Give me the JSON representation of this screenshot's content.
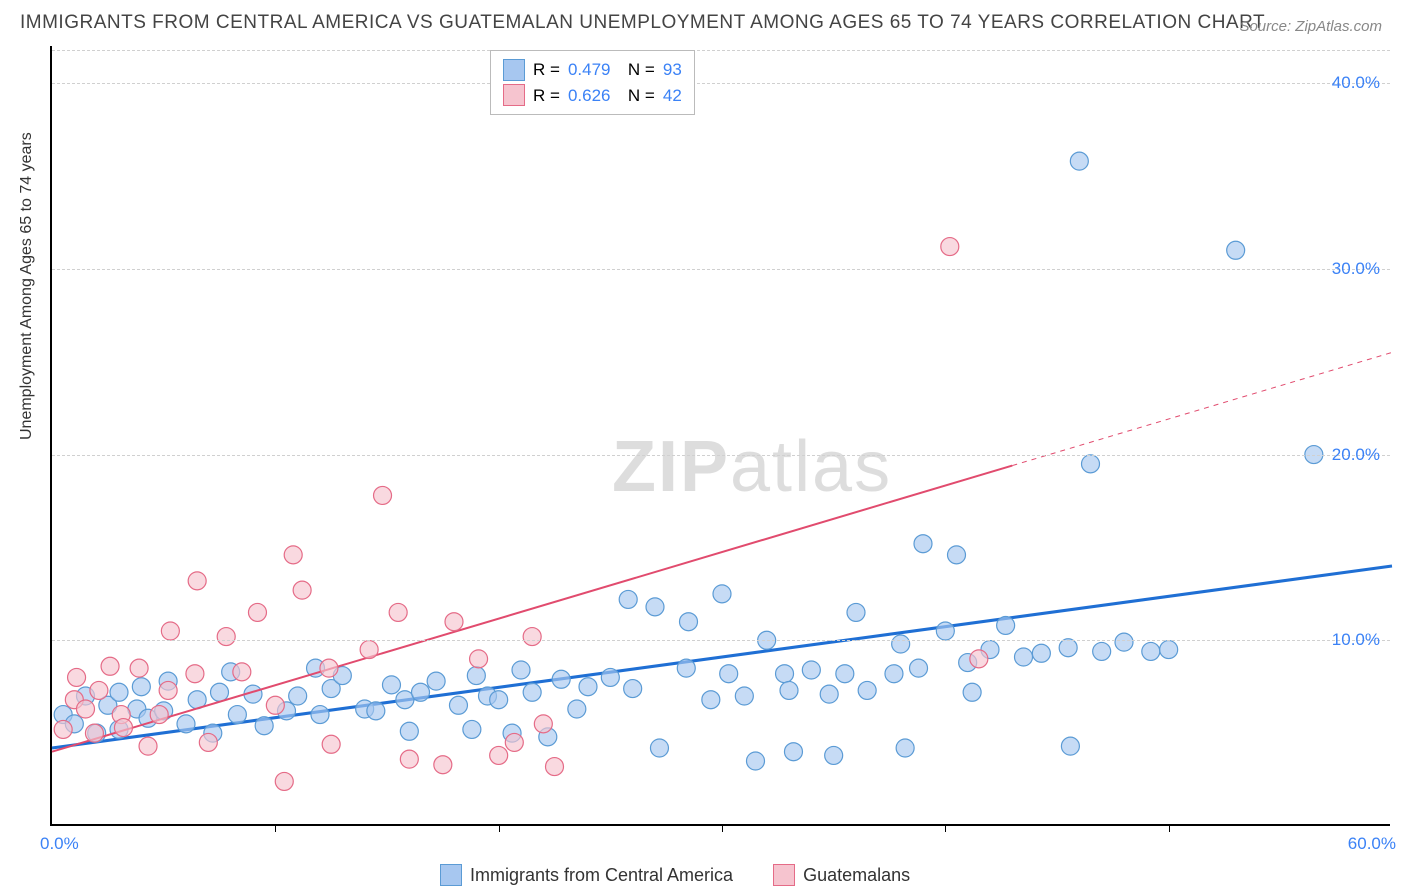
{
  "title": "IMMIGRANTS FROM CENTRAL AMERICA VS GUATEMALAN UNEMPLOYMENT AMONG AGES 65 TO 74 YEARS CORRELATION CHART",
  "source": "Source: ZipAtlas.com",
  "watermark_a": "ZIP",
  "watermark_b": "atlas",
  "y_axis_label": "Unemployment Among Ages 65 to 74 years",
  "chart": {
    "type": "scatter",
    "xlim": [
      0,
      60
    ],
    "ylim": [
      0,
      42
    ],
    "x_ticks": [
      0,
      10,
      20,
      30,
      40,
      50,
      60
    ],
    "y_ticks": [
      10,
      20,
      30,
      40
    ],
    "y_tick_labels": [
      "10.0%",
      "20.0%",
      "30.0%",
      "40.0%"
    ],
    "x_start_label": "0.0%",
    "x_end_label": "60.0%",
    "y_label_color": "#3b82f6",
    "x_label_color": "#3b82f6",
    "grid_color": "#d0d0d0",
    "background_color": "#ffffff",
    "marker_radius": 9,
    "marker_stroke_width": 1.2,
    "series": [
      {
        "name": "Immigrants from Central America",
        "color_fill": "#a7c7f0",
        "color_stroke": "#5b9bd5",
        "line_color": "#1f6fd4",
        "line_width": 3,
        "r": "0.479",
        "n": "93",
        "trend": {
          "x1": 0,
          "y1": 4.2,
          "x2": 60,
          "y2": 14.0
        },
        "points": [
          [
            0.5,
            6
          ],
          [
            1,
            5.5
          ],
          [
            1.5,
            7
          ],
          [
            2,
            5
          ],
          [
            2.5,
            6.5
          ],
          [
            3,
            7.2
          ],
          [
            3,
            5.2
          ],
          [
            3.8,
            6.3
          ],
          [
            4,
            7.5
          ],
          [
            4.3,
            5.8
          ],
          [
            5,
            6.2
          ],
          [
            5.2,
            7.8
          ],
          [
            6,
            5.5
          ],
          [
            6.5,
            6.8
          ],
          [
            7.2,
            5
          ],
          [
            7.5,
            7.2
          ],
          [
            8,
            8.3
          ],
          [
            8.3,
            6
          ],
          [
            9,
            7.1
          ],
          [
            9.5,
            5.4
          ],
          [
            10.5,
            6.2
          ],
          [
            11,
            7
          ],
          [
            11.8,
            8.5
          ],
          [
            12,
            6
          ],
          [
            12.5,
            7.4
          ],
          [
            13,
            8.1
          ],
          [
            14,
            6.3
          ],
          [
            14.5,
            6.2
          ],
          [
            15.2,
            7.6
          ],
          [
            15.8,
            6.8
          ],
          [
            16,
            5.1
          ],
          [
            16.5,
            7.2
          ],
          [
            17.2,
            7.8
          ],
          [
            18.2,
            6.5
          ],
          [
            18.8,
            5.2
          ],
          [
            19,
            8.1
          ],
          [
            19.5,
            7
          ],
          [
            20,
            6.8
          ],
          [
            20.6,
            5
          ],
          [
            21,
            8.4
          ],
          [
            21.5,
            7.2
          ],
          [
            22.2,
            4.8
          ],
          [
            22.8,
            7.9
          ],
          [
            23.5,
            6.3
          ],
          [
            24,
            7.5
          ],
          [
            25,
            8.0
          ],
          [
            25.8,
            12.2
          ],
          [
            26,
            7.4
          ],
          [
            27,
            11.8
          ],
          [
            27.2,
            4.2
          ],
          [
            28.4,
            8.5
          ],
          [
            28.5,
            11
          ],
          [
            29.5,
            6.8
          ],
          [
            30,
            12.5
          ],
          [
            30.3,
            8.2
          ],
          [
            31,
            7
          ],
          [
            31.5,
            3.5
          ],
          [
            32,
            10
          ],
          [
            32.8,
            8.2
          ],
          [
            33,
            7.3
          ],
          [
            33.2,
            4
          ],
          [
            34,
            8.4
          ],
          [
            34.8,
            7.1
          ],
          [
            35,
            3.8
          ],
          [
            35.5,
            8.2
          ],
          [
            36,
            11.5
          ],
          [
            36.5,
            7.3
          ],
          [
            37.7,
            8.2
          ],
          [
            38,
            9.8
          ],
          [
            38.2,
            4.2
          ],
          [
            38.8,
            8.5
          ],
          [
            39,
            15.2
          ],
          [
            40,
            10.5
          ],
          [
            40.5,
            14.6
          ],
          [
            41,
            8.8
          ],
          [
            41.2,
            7.2
          ],
          [
            42,
            9.5
          ],
          [
            42.7,
            10.8
          ],
          [
            43.5,
            9.1
          ],
          [
            44.3,
            9.3
          ],
          [
            45.5,
            9.6
          ],
          [
            45.6,
            4.3
          ],
          [
            46,
            35.8
          ],
          [
            46.5,
            19.5
          ],
          [
            47,
            9.4
          ],
          [
            48,
            9.9
          ],
          [
            49.2,
            9.4
          ],
          [
            50,
            9.5
          ],
          [
            53,
            31
          ],
          [
            56.5,
            20
          ]
        ]
      },
      {
        "name": "Guatemalans",
        "color_fill": "#f6c4cf",
        "color_stroke": "#e56b87",
        "line_color": "#e14b6e",
        "line_width": 2,
        "r": "0.626",
        "n": "42",
        "trend": {
          "x1": 0,
          "y1": 4.0,
          "x2": 60,
          "y2": 25.5,
          "dash_from_x": 43
        },
        "points": [
          [
            0.5,
            5.2
          ],
          [
            1,
            6.8
          ],
          [
            1.1,
            8
          ],
          [
            1.5,
            6.3
          ],
          [
            1.9,
            5
          ],
          [
            2.1,
            7.3
          ],
          [
            2.6,
            8.6
          ],
          [
            3.1,
            6
          ],
          [
            3.2,
            5.3
          ],
          [
            3.9,
            8.5
          ],
          [
            4.3,
            4.3
          ],
          [
            4.8,
            6
          ],
          [
            5.2,
            7.3
          ],
          [
            5.3,
            10.5
          ],
          [
            6.4,
            8.2
          ],
          [
            6.5,
            13.2
          ],
          [
            7,
            4.5
          ],
          [
            7.8,
            10.2
          ],
          [
            8.5,
            8.3
          ],
          [
            9.2,
            11.5
          ],
          [
            10,
            6.5
          ],
          [
            10.4,
            2.4
          ],
          [
            10.8,
            14.6
          ],
          [
            11.2,
            12.7
          ],
          [
            12.4,
            8.5
          ],
          [
            12.5,
            4.4
          ],
          [
            14.2,
            9.5
          ],
          [
            14.8,
            17.8
          ],
          [
            15.5,
            11.5
          ],
          [
            16,
            3.6
          ],
          [
            17.5,
            3.3
          ],
          [
            18,
            11
          ],
          [
            19.1,
            9
          ],
          [
            20,
            3.8
          ],
          [
            20.7,
            4.5
          ],
          [
            21.5,
            10.2
          ],
          [
            22,
            5.5
          ],
          [
            22.5,
            3.2
          ],
          [
            40.2,
            31.2
          ],
          [
            41.5,
            9
          ]
        ]
      }
    ]
  },
  "legend_top": {
    "r_label": "R =",
    "n_label": "N =",
    "value_color": "#3b82f6"
  },
  "legend_bottom": {
    "items": [
      "Immigrants from Central America",
      "Guatemalans"
    ]
  }
}
